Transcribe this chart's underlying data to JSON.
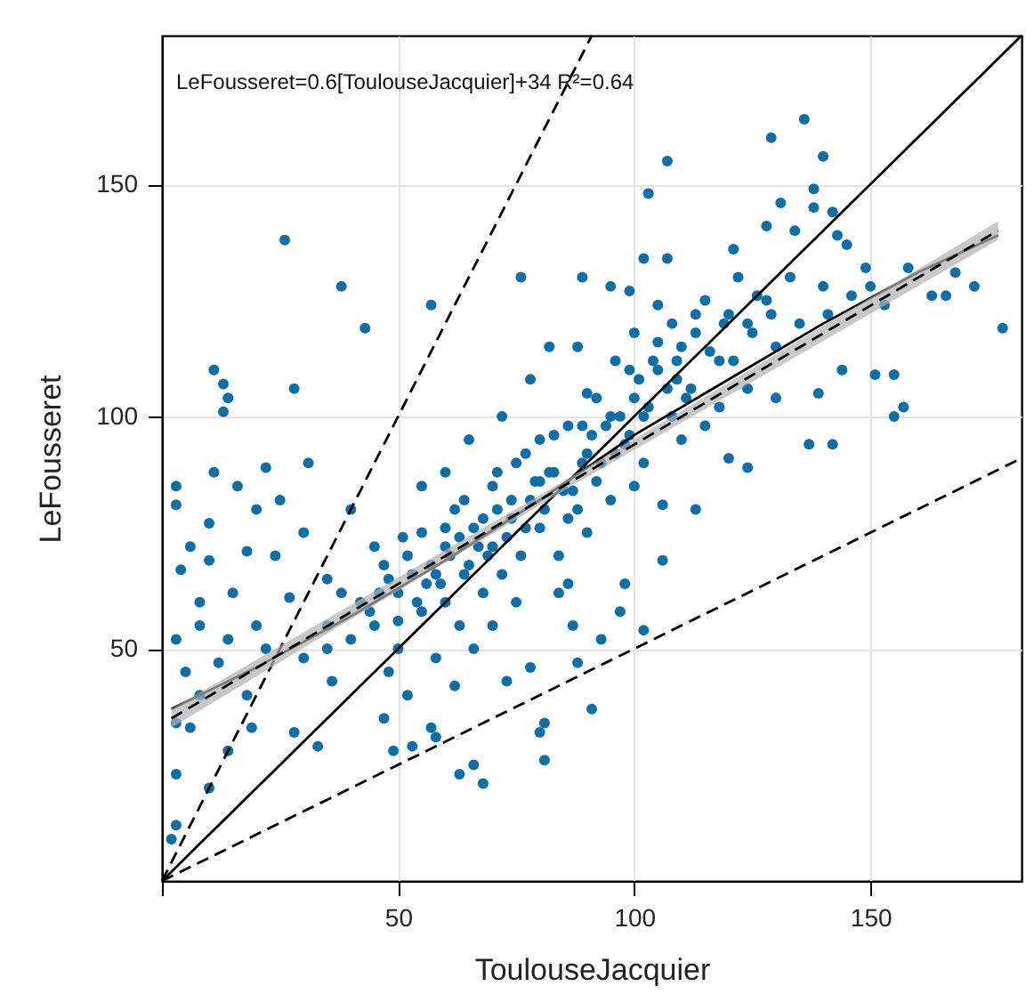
{
  "chart_data": {
    "type": "scatter",
    "xlabel": "ToulouseJacquier",
    "ylabel": "LeFousseret",
    "annotations": [
      "LeFousseret=0.6[ToulouseJacquier]+34 R²=0.64"
    ],
    "xlim": [
      0,
      182
    ],
    "ylim": [
      0,
      182
    ],
    "xticks": [
      {
        "value": 0,
        "label": null
      },
      50,
      100,
      150
    ],
    "yticks": [
      50,
      100,
      150
    ],
    "grid": true,
    "series": [
      {
        "marker": "circle",
        "color": "#0e6ea8",
        "x": [
          44,
          46,
          50,
          53,
          54,
          57,
          59,
          61,
          63,
          64,
          67,
          69,
          71,
          73,
          77,
          79,
          81,
          83,
          87,
          89,
          91,
          93,
          94,
          97,
          99,
          101,
          103,
          104,
          107,
          109,
          111,
          113,
          116,
          119,
          121,
          124,
          126,
          129,
          47,
          51,
          56,
          60,
          64,
          68,
          71,
          74,
          77,
          80,
          83,
          86,
          89,
          92,
          96,
          99,
          102,
          105,
          109,
          113,
          26,
          38,
          43,
          57,
          76,
          89,
          11,
          13,
          14,
          13,
          28,
          88,
          136,
          129,
          140,
          107,
          103,
          138,
          131,
          138,
          142,
          128,
          134,
          143,
          145,
          102,
          107,
          121,
          158,
          168,
          172,
          166,
          178,
          163,
          149,
          153,
          151,
          155,
          157,
          155,
          137,
          142,
          144,
          141,
          95,
          99,
          105,
          130,
          139,
          124,
          3,
          11,
          22,
          31,
          3,
          10,
          20,
          4,
          10,
          18,
          27,
          3,
          8,
          14,
          3,
          6,
          3,
          10,
          3,
          2,
          14,
          19,
          28,
          33,
          36,
          47,
          49,
          53,
          57,
          58,
          63,
          66,
          68,
          73,
          78,
          80,
          81,
          81,
          87,
          88,
          91,
          86,
          124,
          113,
          106,
          102,
          97,
          93,
          98,
          106,
          120,
          5,
          8,
          12,
          15,
          20,
          24,
          30,
          22,
          35,
          30,
          18,
          6,
          16,
          25,
          40,
          35,
          8,
          40,
          42,
          45,
          48,
          50,
          50,
          52,
          55,
          55,
          58,
          60,
          60,
          62,
          63,
          65,
          66,
          68,
          70,
          70,
          72,
          74,
          75,
          76,
          78,
          80,
          80,
          82,
          84,
          85,
          86,
          88,
          90,
          90,
          92,
          95,
          96,
          98,
          100,
          100,
          102,
          105,
          108,
          108,
          110,
          112,
          115,
          118,
          120,
          122,
          125,
          128,
          130,
          133,
          135,
          140,
          146,
          150,
          45,
          48,
          58,
          66,
          70,
          75,
          84,
          90,
          95,
          100,
          110,
          115,
          118,
          60,
          55,
          65,
          72,
          78,
          82,
          38,
          35,
          52,
          62
        ],
        "values": [
          58,
          62,
          56,
          66,
          60,
          68,
          64,
          70,
          74,
          66,
          72,
          70,
          80,
          74,
          76,
          86,
          80,
          88,
          84,
          90,
          96,
          90,
          98,
          100,
          96,
          108,
          102,
          112,
          106,
          112,
          104,
          118,
          114,
          120,
          112,
          120,
          126,
          122,
          68,
          74,
          64,
          76,
          82,
          78,
          88,
          82,
          92,
          86,
          96,
          78,
          98,
          104,
          92,
          110,
          100,
          116,
          108,
          122,
          138,
          128,
          119,
          124,
          130,
          130,
          110,
          107,
          104,
          101,
          106,
          115,
          164,
          160,
          156,
          155,
          148,
          149,
          146,
          145,
          144,
          141,
          140,
          139,
          137,
          134,
          134,
          136,
          132,
          131,
          128,
          126,
          119,
          126,
          132,
          124,
          109,
          109,
          102,
          100,
          94,
          94,
          110,
          122,
          128,
          127,
          124,
          104,
          105,
          106,
          85,
          88,
          89,
          90,
          81,
          77,
          80,
          67,
          69,
          71,
          61,
          52,
          60,
          52,
          34,
          33,
          23,
          20,
          12,
          9,
          28,
          33,
          32,
          29,
          43,
          35,
          28,
          29,
          33,
          31,
          23,
          25,
          21,
          43,
          46,
          32,
          26,
          34,
          55,
          47,
          37,
          64,
          89,
          80,
          69,
          54,
          58,
          52,
          64,
          81,
          91,
          45,
          40,
          47,
          62,
          55,
          70,
          75,
          50,
          55,
          48,
          40,
          72,
          85,
          82,
          80,
          65,
          55,
          52,
          60,
          55,
          65,
          50,
          62,
          70,
          58,
          75,
          66,
          60,
          72,
          80,
          55,
          68,
          76,
          62,
          72,
          85,
          66,
          78,
          90,
          70,
          82,
          76,
          95,
          88,
          70,
          84,
          98,
          80,
          92,
          105,
          86,
          100,
          112,
          94,
          104,
          118,
          90,
          110,
          100,
          120,
          115,
          106,
          125,
          112,
          122,
          130,
          118,
          125,
          115,
          130,
          120,
          128,
          126,
          128,
          72,
          45,
          48,
          50,
          55,
          60,
          62,
          75,
          82,
          85,
          95,
          98,
          102,
          88,
          85,
          95,
          100,
          108,
          115,
          62,
          50,
          40,
          42
        ]
      },
      {
        "type": "line",
        "color": "#000000",
        "line_style": "solid",
        "x": [
          0,
          182
        ],
        "values": [
          0,
          182
        ]
      },
      {
        "type": "line",
        "color": "#000000",
        "line_style": "dashed",
        "x": [
          0,
          91
        ],
        "values": [
          0,
          182
        ]
      },
      {
        "type": "line",
        "color": "#000000",
        "line_style": "dashed",
        "x": [
          0,
          182
        ],
        "values": [
          0,
          91
        ]
      },
      {
        "type": "line",
        "color": "#000000",
        "line_style": "solid",
        "x": [
          2,
          20,
          40,
          60,
          80,
          100,
          120,
          140,
          160,
          177
        ],
        "values": [
          37,
          46,
          57,
          69,
          82,
          96,
          108,
          120,
          131,
          139
        ]
      },
      {
        "type": "line",
        "color": "#000000",
        "line_style": "dashed",
        "x": [
          2,
          85,
          177
        ],
        "values": [
          35,
          85,
          140
        ],
        "lower": [
          33,
          84,
          138
        ],
        "upper": [
          37,
          86,
          142
        ]
      }
    ]
  }
}
